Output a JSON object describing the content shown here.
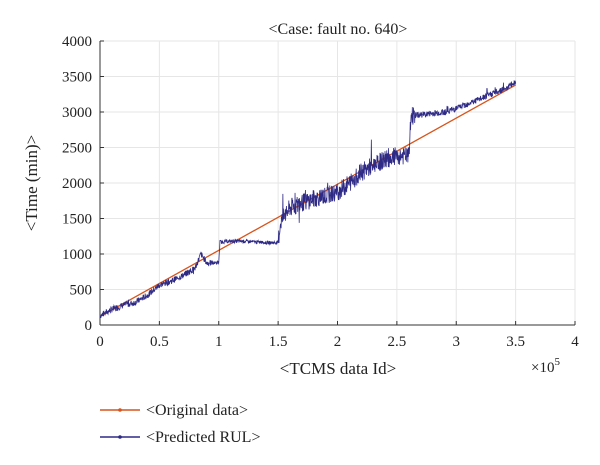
{
  "chart_data": {
    "type": "line",
    "title": "<Case: fault no. 640>",
    "xlabel": "<TCMS data Id>",
    "ylabel": "<Time (min)>",
    "x_exponent_label": "×10",
    "x_exponent_power": "5",
    "xlim": [
      0,
      4
    ],
    "ylim": [
      0,
      4000
    ],
    "xticks": [
      0,
      0.5,
      1,
      1.5,
      2,
      2.5,
      3,
      3.5,
      4
    ],
    "xtick_labels": [
      "0",
      "0.5",
      "1",
      "1.5",
      "2",
      "2.5",
      "3",
      "3.5",
      "4"
    ],
    "yticks": [
      0,
      500,
      1000,
      1500,
      2000,
      2500,
      3000,
      3500,
      4000
    ],
    "ytick_labels": [
      "0",
      "500",
      "1000",
      "1500",
      "2000",
      "2500",
      "3000",
      "3500",
      "4000"
    ],
    "grid": true,
    "legend_position": "below",
    "series": [
      {
        "name": "<Original data>",
        "color": "#d9541a",
        "x": [
          0,
          3.5
        ],
        "y": [
          120,
          3380
        ]
      },
      {
        "name": "<Predicted RUL>",
        "color": "#2e2a86",
        "x": [
          0,
          0.1,
          0.2,
          0.3,
          0.4,
          0.5,
          0.6,
          0.7,
          0.8,
          0.85,
          0.9,
          1.0,
          1.01,
          1.1,
          1.2,
          1.3,
          1.4,
          1.5,
          1.52,
          1.6,
          1.7,
          1.8,
          1.9,
          2.0,
          2.1,
          2.2,
          2.3,
          2.4,
          2.5,
          2.6,
          2.62,
          2.7,
          2.8,
          2.9,
          3.0,
          3.1,
          3.2,
          3.3,
          3.4,
          3.5
        ],
        "y": [
          130,
          220,
          280,
          320,
          420,
          560,
          620,
          700,
          800,
          1000,
          870,
          880,
          1170,
          1180,
          1180,
          1170,
          1160,
          1160,
          1450,
          1650,
          1720,
          1780,
          1820,
          1870,
          2000,
          2150,
          2250,
          2330,
          2380,
          2380,
          2950,
          2960,
          2980,
          3000,
          3050,
          3120,
          3180,
          3260,
          3320,
          3420
        ]
      }
    ]
  }
}
